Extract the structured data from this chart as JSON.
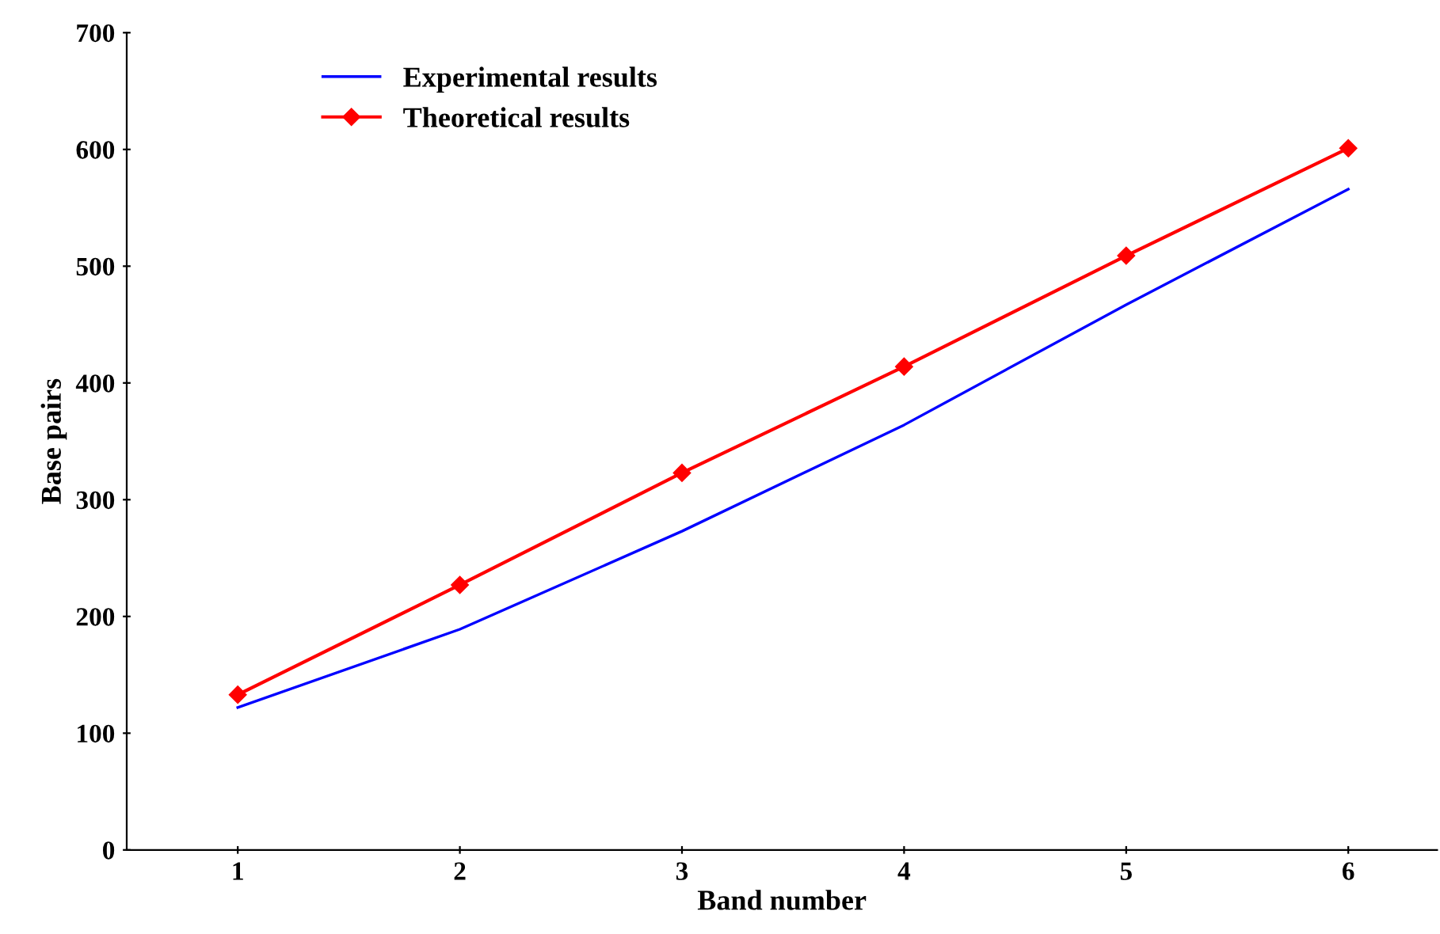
{
  "chart_data": {
    "type": "line",
    "xlabel": "Band number",
    "ylabel": "Base pairs",
    "categories": [
      "1",
      "2",
      "3",
      "4",
      "5",
      "6"
    ],
    "series": [
      {
        "name": "Experimental results",
        "color": "#0000ff",
        "marker": "none",
        "values": [
          122,
          189,
          273,
          364,
          467,
          566
        ]
      },
      {
        "name": "Theoretical results",
        "color": "#ff0000",
        "marker": "diamond",
        "values": [
          133,
          227,
          323,
          414,
          509,
          601
        ]
      }
    ],
    "ylim": [
      0,
      700
    ],
    "yticks": [
      0,
      100,
      200,
      300,
      400,
      500,
      600,
      700
    ],
    "grid": false,
    "legend": "top left"
  }
}
